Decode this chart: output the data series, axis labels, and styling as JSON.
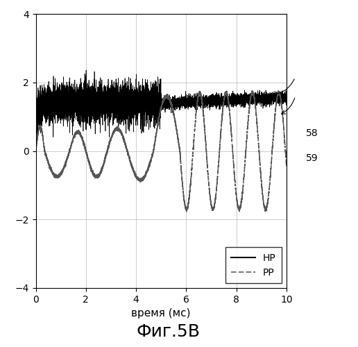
{
  "title": "Фиг.5В",
  "xlabel": "время (мс)",
  "xlim": [
    0,
    10
  ],
  "ylim": [
    -4,
    4
  ],
  "xticks": [
    0,
    2,
    4,
    6,
    8,
    10
  ],
  "yticks": [
    -4,
    -2,
    0,
    2,
    4
  ],
  "legend_labels": [
    "НР",
    "РР"
  ],
  "annotation_58": "58",
  "annotation_59": "59",
  "bg_color": "#ffffff",
  "line_color_hp": "#000000",
  "line_color_pp": "#555555",
  "hp_base": 1.4,
  "hp_noise_early": 0.18,
  "hp_noise_late": 0.07,
  "pp_amp_early": 0.75,
  "pp_amp_main": 1.7,
  "pp_freq_main": 0.95
}
